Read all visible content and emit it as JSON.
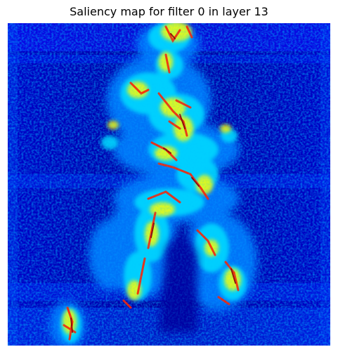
{
  "title": "Saliency map for filter 0 in layer 13",
  "colormap": {
    "name": "jet",
    "stops": [
      "#00007f",
      "#0000ff",
      "#0080ff",
      "#00ffff",
      "#80ff80",
      "#ffff00",
      "#ff8000",
      "#ff0000",
      "#7f0000"
    ]
  },
  "image_description_icon": "saliency-heatmap-image"
}
